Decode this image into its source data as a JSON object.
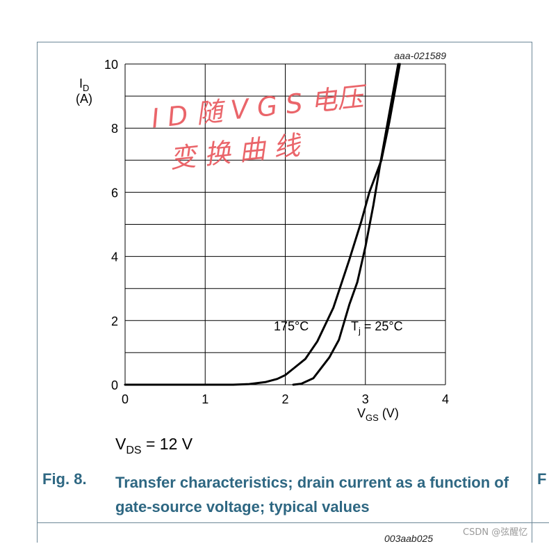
{
  "chart_data": {
    "type": "line",
    "doc_id": "aaa-021589",
    "x_axis": {
      "label_main": "V",
      "label_sub": "GS",
      "label_unit": "(V)",
      "range": [
        0,
        4
      ],
      "ticks": [
        "0",
        "1",
        "2",
        "3",
        "4"
      ]
    },
    "y_axis": {
      "label_main": "I",
      "label_sub": "D",
      "label_unit": "(A)",
      "range": [
        0,
        10
      ],
      "ticks": [
        "0",
        "2",
        "4",
        "6",
        "8",
        "10"
      ]
    },
    "grid": true,
    "series": [
      {
        "name": "175°C",
        "points": [
          [
            0,
            0
          ],
          [
            1.35,
            0
          ],
          [
            1.55,
            0.02
          ],
          [
            1.75,
            0.08
          ],
          [
            1.9,
            0.18
          ],
          [
            2.0,
            0.3
          ],
          [
            2.1,
            0.5
          ],
          [
            2.25,
            0.8
          ],
          [
            2.4,
            1.35
          ],
          [
            2.6,
            2.4
          ],
          [
            2.8,
            3.9
          ],
          [
            2.95,
            5.1
          ],
          [
            3.05,
            6.0
          ],
          [
            3.2,
            7.0
          ],
          [
            3.3,
            8.2
          ],
          [
            3.38,
            9.3
          ],
          [
            3.43,
            10.0
          ]
        ]
      },
      {
        "name_pre": "T",
        "name_sub": "j",
        "name_post": " = 25°C",
        "points": [
          [
            2.1,
            0
          ],
          [
            2.2,
            0.03
          ],
          [
            2.35,
            0.2
          ],
          [
            2.55,
            0.85
          ],
          [
            2.67,
            1.4
          ],
          [
            2.8,
            2.5
          ],
          [
            2.9,
            3.2
          ],
          [
            3.0,
            4.3
          ],
          [
            3.1,
            5.6
          ],
          [
            3.18,
            6.8
          ],
          [
            3.28,
            8.2
          ],
          [
            3.36,
            9.3
          ],
          [
            3.41,
            10.0
          ]
        ]
      }
    ],
    "annotation": {
      "pre": "V",
      "sub": "DS",
      "post": " = 12 V"
    }
  },
  "caption": {
    "number": "Fig. 8.",
    "title": "Transfer characteristics; drain current as a function of gate-source voltage; typical values",
    "right_letter": "F",
    "cut_id": "003aab025"
  },
  "handwriting": {
    "line1": "I D 随 V G S 电压",
    "line2": "变 换 曲 线",
    "color": "#e8555a"
  },
  "watermark": "CSDN @弦醒忆",
  "colors": {
    "caption": "#2e6782",
    "frame": "#6c8797",
    "curve": "#000000"
  }
}
